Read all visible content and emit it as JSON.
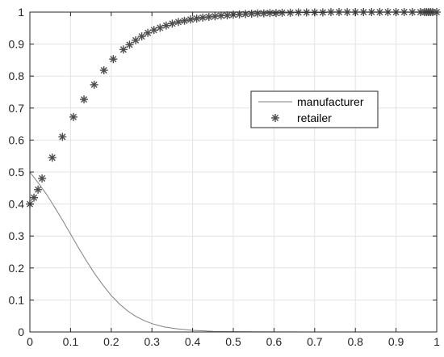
{
  "chart_data": {
    "type": "line",
    "title": "",
    "xlabel": "",
    "ylabel": "",
    "xlim": [
      0,
      1
    ],
    "ylim": [
      0,
      1
    ],
    "xticks": [
      "0",
      "0.1",
      "0.2",
      "0.3",
      "0.4",
      "0.5",
      "0.6",
      "0.7",
      "0.8",
      "0.9",
      "1"
    ],
    "yticks": [
      "0",
      "0.1",
      "0.2",
      "0.3",
      "0.4",
      "0.5",
      "0.6",
      "0.7",
      "0.8",
      "0.9",
      "1"
    ],
    "grid": true,
    "legend": "upper-middle-right",
    "series": [
      {
        "name": "manufacturer",
        "style": "line",
        "color": "#808080",
        "x": [
          0,
          0.02,
          0.04,
          0.06,
          0.08,
          0.1,
          0.12,
          0.14,
          0.16,
          0.18,
          0.2,
          0.22,
          0.24,
          0.26,
          0.28,
          0.3,
          0.33,
          0.36,
          0.4,
          0.45,
          0.5,
          0.55,
          0.6,
          0.7,
          0.8,
          0.9,
          1.0
        ],
        "y": [
          0.5,
          0.467,
          0.432,
          0.392,
          0.35,
          0.306,
          0.262,
          0.22,
          0.181,
          0.146,
          0.114,
          0.088,
          0.066,
          0.049,
          0.036,
          0.026,
          0.016,
          0.01,
          0.005,
          0.002,
          0.001,
          0.0005,
          0.0002,
          0.0,
          0.0,
          0.0,
          0.0
        ]
      },
      {
        "name": "retailer",
        "style": "marker",
        "marker": "asterisk",
        "color": "#4d4d4d",
        "x": [
          0,
          0.01,
          0.02,
          0.03,
          0.055,
          0.08,
          0.107,
          0.133,
          0.158,
          0.182,
          0.205,
          0.23,
          0.245,
          0.26,
          0.275,
          0.29,
          0.305,
          0.32,
          0.335,
          0.35,
          0.365,
          0.38,
          0.395,
          0.41,
          0.425,
          0.44,
          0.455,
          0.47,
          0.485,
          0.5,
          0.515,
          0.53,
          0.545,
          0.56,
          0.575,
          0.59,
          0.605,
          0.62,
          0.64,
          0.66,
          0.68,
          0.7,
          0.72,
          0.74,
          0.76,
          0.78,
          0.8,
          0.82,
          0.84,
          0.86,
          0.88,
          0.9,
          0.92,
          0.94,
          0.96,
          0.97,
          0.975,
          0.98,
          0.985,
          0.99,
          1.0
        ],
        "y": [
          0.4,
          0.42,
          0.445,
          0.48,
          0.545,
          0.61,
          0.672,
          0.727,
          0.773,
          0.818,
          0.853,
          0.883,
          0.898,
          0.912,
          0.924,
          0.935,
          0.944,
          0.951,
          0.958,
          0.964,
          0.969,
          0.973,
          0.977,
          0.98,
          0.983,
          0.985,
          0.987,
          0.989,
          0.99,
          0.992,
          0.993,
          0.994,
          0.995,
          0.996,
          0.996,
          0.997,
          0.997,
          0.998,
          0.998,
          0.999,
          0.999,
          0.999,
          0.999,
          1.0,
          1.0,
          1.0,
          1.0,
          1.0,
          1.0,
          1.0,
          1.0,
          1.0,
          1.0,
          1.0,
          1.0,
          1.0,
          1.0,
          1.0,
          1.0,
          1.0,
          1.0
        ]
      }
    ]
  }
}
